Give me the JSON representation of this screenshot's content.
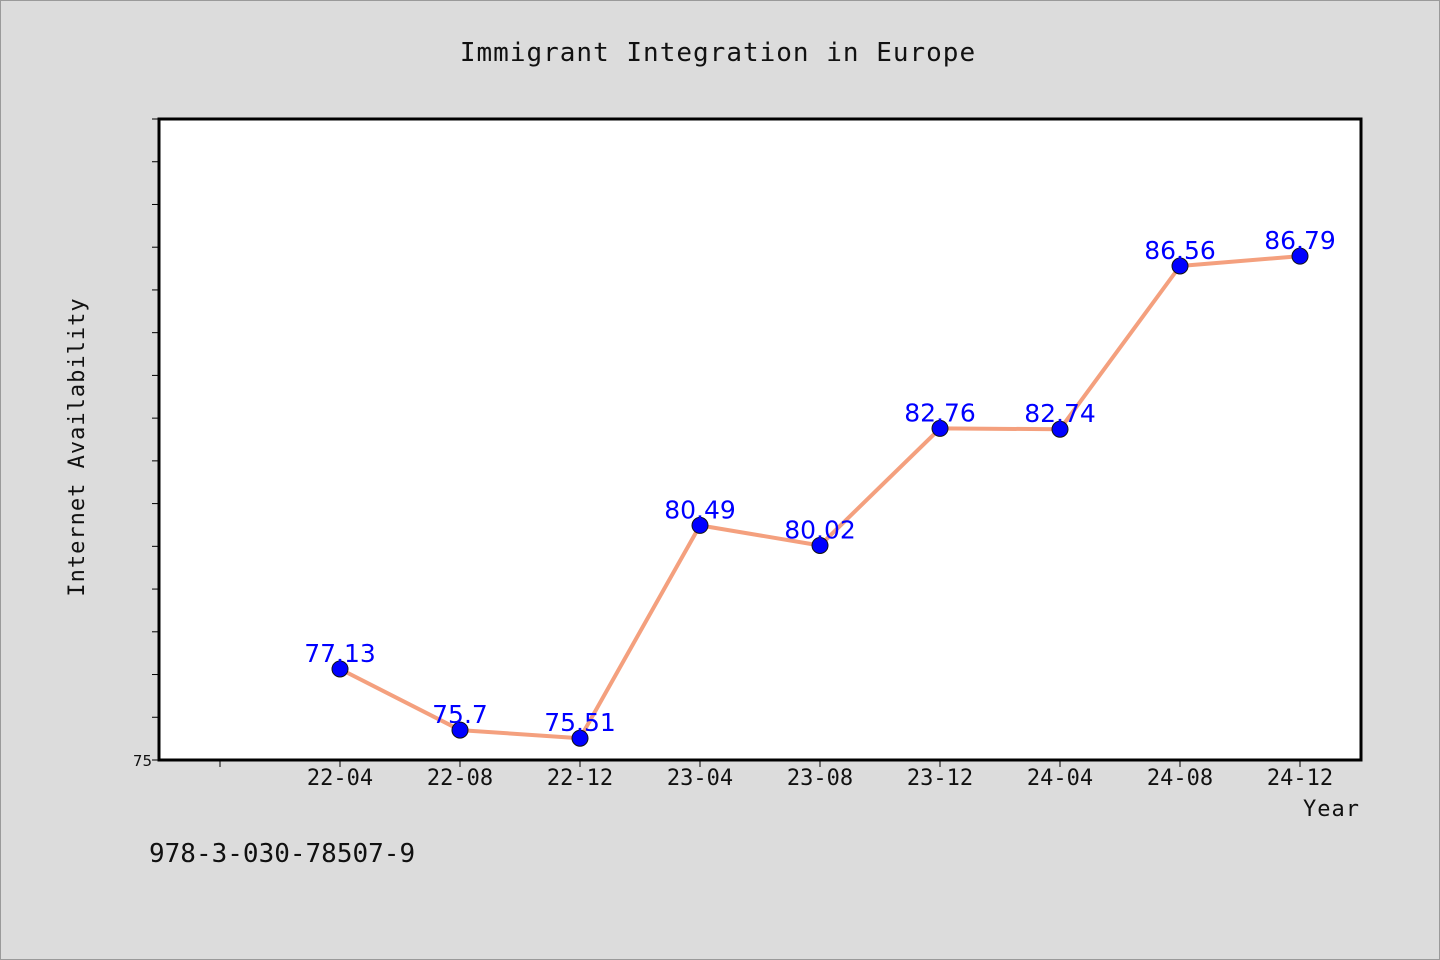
{
  "chart_data": {
    "type": "line",
    "title": "Immigrant Integration in Europe",
    "xlabel": "Year",
    "ylabel": "Internet Availability",
    "categories": [
      "22-04",
      "22-08",
      "22-12",
      "23-04",
      "23-08",
      "23-12",
      "24-04",
      "24-08",
      "24-12"
    ],
    "series": [
      {
        "values": [
          77.13,
          75.7,
          75.51,
          80.49,
          80.02,
          82.76,
          82.74,
          86.56,
          86.79
        ],
        "labels": [
          "77.13",
          "75.7",
          "75.51",
          "80.49",
          "80.02",
          "82.76",
          "82.74",
          "86.56",
          "86.79"
        ]
      }
    ],
    "ylim": [
      75,
      90
    ],
    "yticks_labeled": [
      "75"
    ],
    "grid": false,
    "line_color": "#f4a07e",
    "marker_color": "#0000ff",
    "label_color": "#0000ff"
  },
  "footer": {
    "code": "978-3-030-78507-9"
  }
}
